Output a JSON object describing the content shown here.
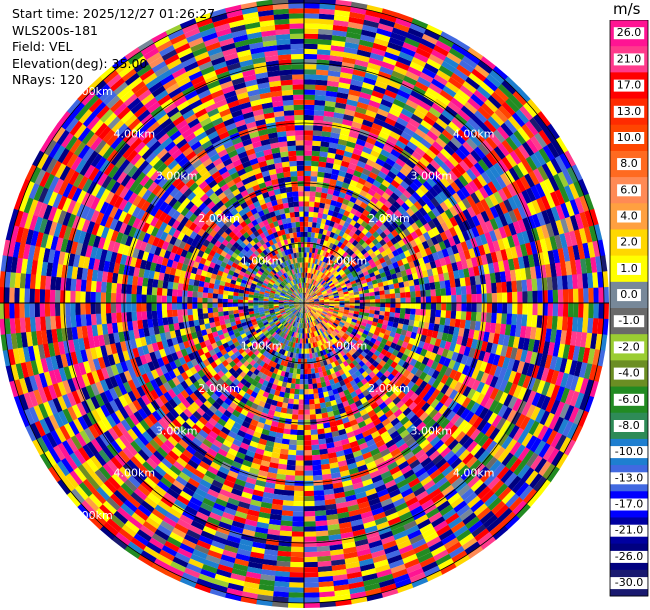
{
  "header": {
    "start_time": "Start time: 2025/12/27 01:26:27",
    "instrument": "WLS200s-181",
    "field": "Field: VEL",
    "elevation": "Elevation(deg): 35.00",
    "nrays": "NRays: 120"
  },
  "chart_data": {
    "type": "heatmap",
    "projection": "polar-ppi",
    "nrays": 120,
    "range_rings_km": [
      "1.00km",
      "2.00km",
      "3.00km",
      "4.00km",
      "5.00km"
    ],
    "diagonal_ring_labels": [
      [
        "5.00km",
        "4.00km",
        "3.00km",
        "2.00km",
        "1.00km"
      ],
      [
        "4.00km",
        "3.00km",
        "2.00km",
        "1.00km"
      ],
      [
        "1.00km",
        "2.00km",
        "3.00km",
        "4.00km"
      ],
      [
        "1.00km",
        "2.00km",
        "3.00km",
        "4.00km",
        "5.00km"
      ]
    ],
    "colorbar": {
      "unit": "m/s",
      "ticks": [
        "26.0",
        "21.0",
        "17.0",
        "13.0",
        "10.0",
        "8.0",
        "6.0",
        "4.0",
        "2.0",
        "1.0",
        "0.0",
        "-1.0",
        "-2.0",
        "-4.0",
        "-6.0",
        "-8.0",
        "-10.0",
        "-13.0",
        "-17.0",
        "-21.0",
        "-26.0",
        "-30.0"
      ],
      "colors": [
        "#ff1493",
        "#ff3a8c",
        "#ff0000",
        "#ff2b00",
        "#ff4500",
        "#ff6a20",
        "#ff8a55",
        "#ffa040",
        "#ffd700",
        "#ffff00",
        "#778899",
        "#696969",
        "#9acd32",
        "#6b8e23",
        "#228b22",
        "#2e8b57",
        "#1e7fd0",
        "#4169e1",
        "#0000ff",
        "#0000a0",
        "#000080",
        "#191970"
      ]
    }
  }
}
